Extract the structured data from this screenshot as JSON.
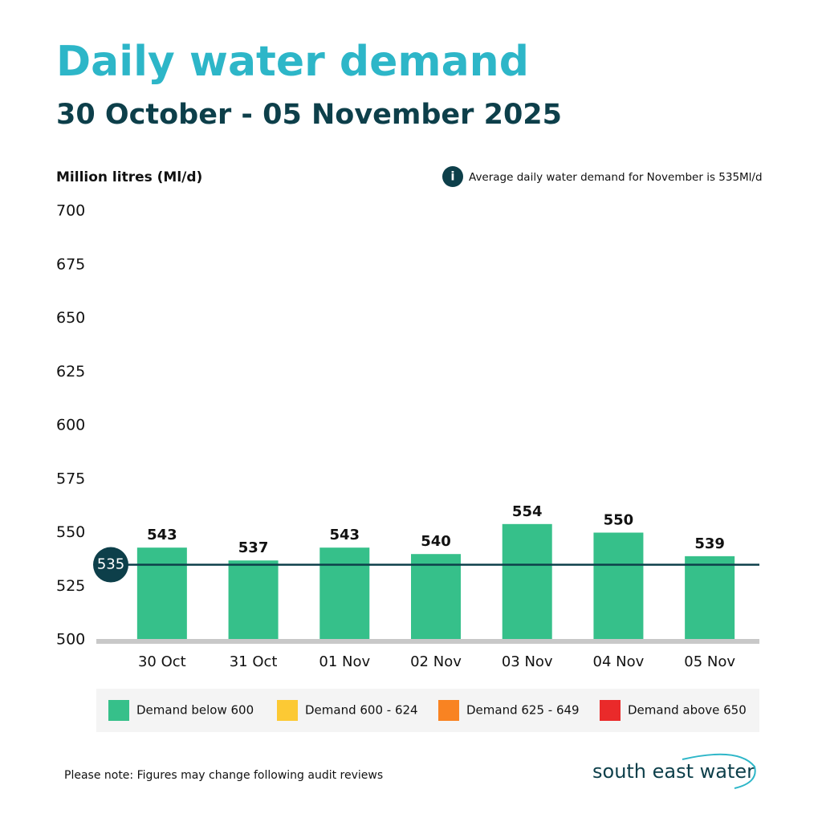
{
  "chart_data": {
    "type": "bar",
    "title": "Daily water demand",
    "subtitle": "30 October - 05 November 2025",
    "y_label": "Million litres (Ml/d)",
    "info_note": "Average daily water demand for November  is 535Ml/d",
    "categories": [
      "30 Oct",
      "31 Oct",
      "01 Nov",
      "02 Nov",
      "03 Nov",
      "04 Nov",
      "05 Nov"
    ],
    "values": [
      543,
      537,
      543,
      540,
      554,
      550,
      539
    ],
    "color": "#36c08a",
    "reference_value": 535,
    "ylim": [
      500,
      700
    ],
    "yticks": [
      500,
      525,
      550,
      575,
      600,
      625,
      650,
      675,
      700
    ],
    "grid": false,
    "legend_items": [
      {
        "label": "Demand below 600",
        "color": "#36c08a"
      },
      {
        "label": "Demand 600 - 624",
        "color": "#fcc934"
      },
      {
        "label": "Demand 625 - 649",
        "color": "#f98322"
      },
      {
        "label": "Demand above 650",
        "color": "#ea2a2a"
      }
    ],
    "footnote": "Please note: Figures may change following audit reviews",
    "brand": "south east water"
  }
}
